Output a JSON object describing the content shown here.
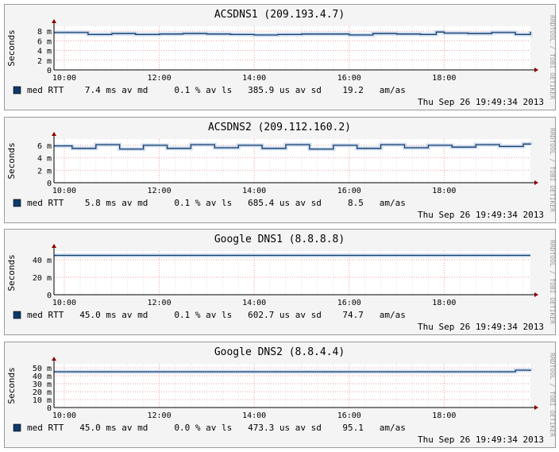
{
  "chart_data": [
    {
      "type": "line",
      "title": "ACSDNS1 (209.193.4.7)",
      "ylabel": "Seconds",
      "ylim": [
        0,
        0.009
      ],
      "yticks": [
        {
          "value": 0,
          "label": "0"
        },
        {
          "value": 0.002,
          "label": "2 m"
        },
        {
          "value": 0.004,
          "label": "4 m"
        },
        {
          "value": 0.006,
          "label": "6 m"
        },
        {
          "value": 0.008,
          "label": "8 m"
        }
      ],
      "xlim": [
        "09:47",
        "19:49"
      ],
      "xticks": [
        "10:00",
        "12:00",
        "14:00",
        "16:00",
        "18:00"
      ],
      "grid": true,
      "watermark": "RRDTOOL / TOBI OETIKER",
      "series": [
        {
          "name": "med RTT",
          "color": "#0e3a6b",
          "x": [
            "09:47",
            "10:30",
            "11:00",
            "11:30",
            "12:00",
            "12:30",
            "13:00",
            "13:30",
            "14:00",
            "14:30",
            "15:00",
            "15:30",
            "16:00",
            "16:30",
            "17:00",
            "17:30",
            "17:50",
            "18:00",
            "18:30",
            "19:00",
            "19:30",
            "19:49"
          ],
          "values": [
            0.0077,
            0.0073,
            0.0075,
            0.0073,
            0.0074,
            0.0075,
            0.0074,
            0.0073,
            0.0072,
            0.0073,
            0.0074,
            0.0074,
            0.0072,
            0.0075,
            0.0074,
            0.0073,
            0.0078,
            0.0076,
            0.0075,
            0.0077,
            0.0073,
            0.0079
          ]
        }
      ],
      "legend": {
        "swatch_color": "#0e3a6b",
        "text": "med RTT    7.4 ms av md     0.1 % av ls   385.9 us av sd    19.2   am/as"
      },
      "timestamp": "Thu Sep 26 19:49:34 2013"
    },
    {
      "type": "line",
      "title": "ACSDNS2 (209.112.160.2)",
      "ylabel": "Seconds",
      "ylim": [
        0,
        0.007
      ],
      "yticks": [
        {
          "value": 0,
          "label": "0"
        },
        {
          "value": 0.002,
          "label": "2 m"
        },
        {
          "value": 0.004,
          "label": "4 m"
        },
        {
          "value": 0.006,
          "label": "6 m"
        }
      ],
      "xlim": [
        "09:47",
        "19:49"
      ],
      "xticks": [
        "10:00",
        "12:00",
        "14:00",
        "16:00",
        "18:00"
      ],
      "grid": true,
      "watermark": "RRDTOOL / TOBI OETIKER",
      "series": [
        {
          "name": "med RTT",
          "color": "#0e3a6b",
          "x": [
            "09:47",
            "10:10",
            "10:40",
            "11:10",
            "11:40",
            "12:10",
            "12:40",
            "13:10",
            "13:40",
            "14:10",
            "14:40",
            "15:10",
            "15:40",
            "16:10",
            "16:40",
            "17:10",
            "17:40",
            "18:10",
            "18:40",
            "19:10",
            "19:40",
            "19:49"
          ],
          "values": [
            0.0059,
            0.0055,
            0.0061,
            0.0054,
            0.006,
            0.0055,
            0.0061,
            0.0056,
            0.006,
            0.0055,
            0.0061,
            0.0054,
            0.006,
            0.0055,
            0.0061,
            0.0056,
            0.006,
            0.0057,
            0.0061,
            0.0058,
            0.0062,
            0.0061
          ]
        }
      ],
      "legend": {
        "swatch_color": "#0e3a6b",
        "text": "med RTT    5.8 ms av md     0.1 % av ls   685.4 us av sd     8.5   am/as"
      },
      "timestamp": "Thu Sep 26 19:49:34 2013"
    },
    {
      "type": "line",
      "title": "Google DNS1 (8.8.8.8)",
      "ylabel": "Seconds",
      "ylim": [
        0,
        0.05
      ],
      "yticks": [
        {
          "value": 0,
          "label": "0"
        },
        {
          "value": 0.02,
          "label": "20 m"
        },
        {
          "value": 0.04,
          "label": "40 m"
        }
      ],
      "xlim": [
        "09:47",
        "19:49"
      ],
      "xticks": [
        "10:00",
        "12:00",
        "14:00",
        "16:00",
        "18:00"
      ],
      "grid": true,
      "watermark": "RRDTOOL / TOBI OETIKER",
      "series": [
        {
          "name": "med RTT",
          "color": "#0e3a6b",
          "x": [
            "09:47",
            "12:00",
            "14:00",
            "16:00",
            "18:00",
            "19:49"
          ],
          "values": [
            0.045,
            0.045,
            0.045,
            0.045,
            0.045,
            0.045
          ]
        }
      ],
      "legend": {
        "swatch_color": "#0e3a6b",
        "text": "med RTT   45.0 ms av md     0.1 % av ls   602.7 us av sd    74.7   am/as"
      },
      "timestamp": "Thu Sep 26 19:49:34 2013"
    },
    {
      "type": "line",
      "title": "Google DNS2 (8.8.4.4)",
      "ylabel": "Seconds",
      "ylim": [
        0,
        0.055
      ],
      "yticks": [
        {
          "value": 0,
          "label": "0"
        },
        {
          "value": 0.01,
          "label": "10 m"
        },
        {
          "value": 0.02,
          "label": "20 m"
        },
        {
          "value": 0.03,
          "label": "30 m"
        },
        {
          "value": 0.04,
          "label": "40 m"
        },
        {
          "value": 0.05,
          "label": "50 m"
        }
      ],
      "xlim": [
        "09:47",
        "19:49"
      ],
      "xticks": [
        "10:00",
        "12:00",
        "14:00",
        "16:00",
        "18:00"
      ],
      "grid": true,
      "watermark": "RRDTOOL / TOBI OETIKER",
      "series": [
        {
          "name": "med RTT",
          "color": "#0e3a6b",
          "x": [
            "09:47",
            "12:00",
            "14:00",
            "16:00",
            "18:00",
            "19:20",
            "19:30",
            "19:49"
          ],
          "values": [
            0.045,
            0.045,
            0.045,
            0.045,
            0.045,
            0.045,
            0.047,
            0.046
          ]
        }
      ],
      "legend": {
        "swatch_color": "#0e3a6b",
        "text": "med RTT   45.0 ms av md     0.0 % av ls   473.3 us av sd    95.1   am/as"
      },
      "timestamp": "Thu Sep 26 19:49:34 2013"
    }
  ]
}
